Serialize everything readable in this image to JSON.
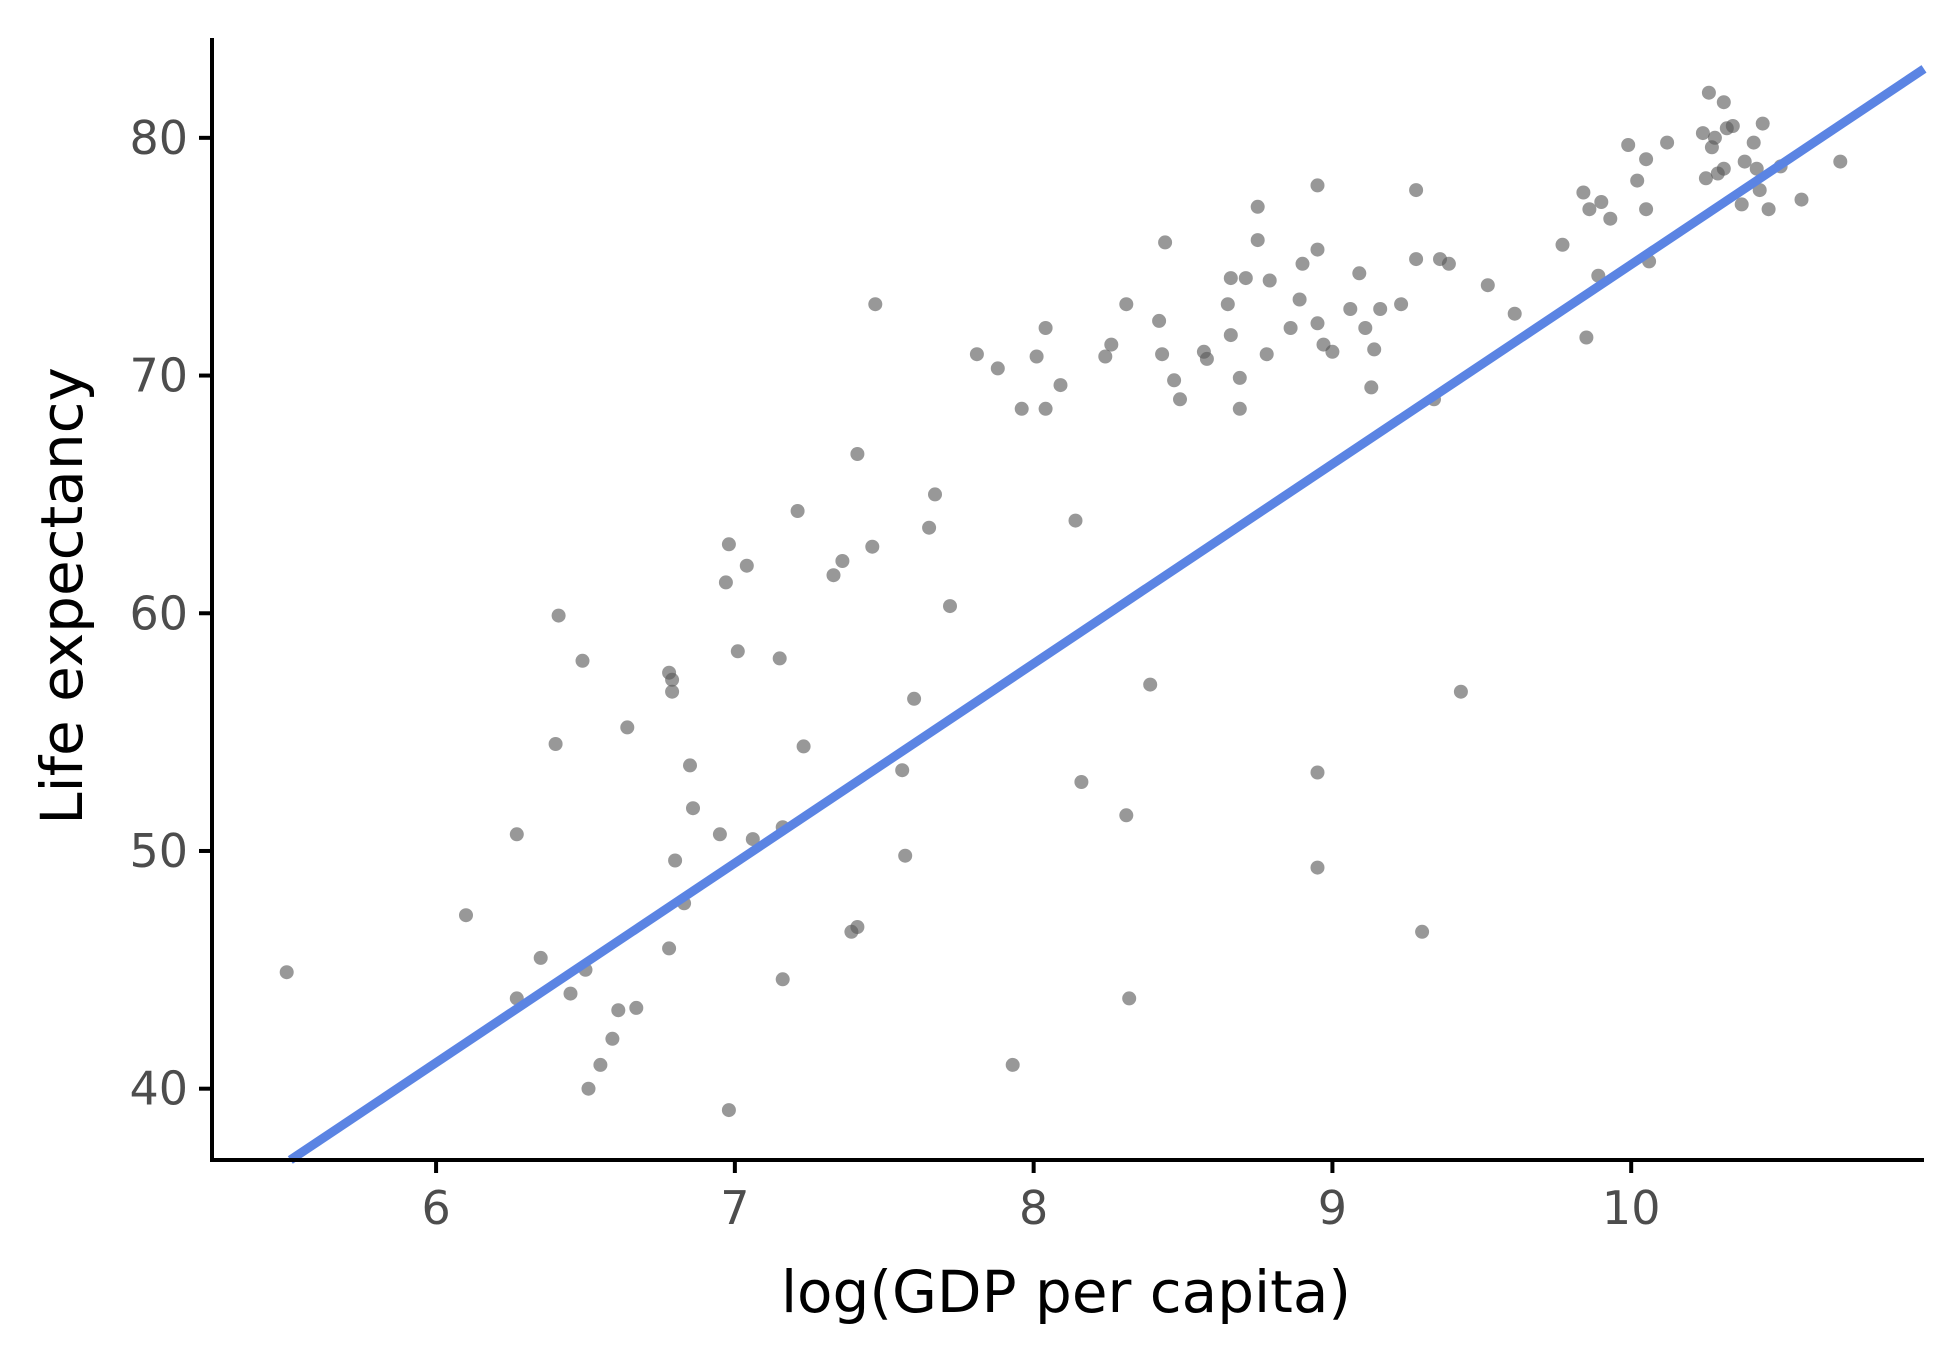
{
  "chart_data": {
    "type": "scatter",
    "xlabel": "log(GDP per capita)",
    "ylabel": "Life expectancy",
    "xlim": [
      5.25,
      10.98
    ],
    "ylim": [
      37.0,
      84.2
    ],
    "xticks": [
      6,
      7,
      8,
      9,
      10
    ],
    "yticks": [
      40,
      50,
      60,
      70,
      80
    ],
    "grid": false,
    "legend": "none",
    "colors": {
      "points": "#595959",
      "trendline": "#5b84e3",
      "axis": "#000000",
      "tick_label": "#4d4d4d"
    },
    "trendline": {
      "x": [
        5.5,
        10.98
      ],
      "y": [
        36.9,
        82.9
      ]
    },
    "points": [
      [
        5.5,
        44.9
      ],
      [
        6.1,
        47.3
      ],
      [
        6.27,
        43.8
      ],
      [
        6.27,
        50.7
      ],
      [
        6.35,
        45.5
      ],
      [
        6.41,
        59.9
      ],
      [
        6.4,
        54.5
      ],
      [
        6.45,
        44.0
      ],
      [
        6.49,
        58.0
      ],
      [
        6.5,
        45.0
      ],
      [
        6.51,
        40.0
      ],
      [
        6.55,
        41.0
      ],
      [
        6.59,
        42.1
      ],
      [
        6.61,
        43.3
      ],
      [
        6.64,
        55.2
      ],
      [
        6.67,
        43.4
      ],
      [
        6.78,
        45.9
      ],
      [
        6.78,
        57.5
      ],
      [
        6.79,
        57.2
      ],
      [
        6.79,
        56.7
      ],
      [
        6.8,
        49.6
      ],
      [
        6.83,
        47.8
      ],
      [
        6.85,
        53.6
      ],
      [
        6.86,
        51.8
      ],
      [
        6.95,
        50.7
      ],
      [
        6.97,
        61.3
      ],
      [
        6.98,
        62.9
      ],
      [
        6.98,
        39.1
      ],
      [
        7.01,
        58.4
      ],
      [
        7.04,
        62.0
      ],
      [
        7.06,
        50.5
      ],
      [
        7.15,
        58.1
      ],
      [
        7.16,
        51.0
      ],
      [
        7.16,
        44.6
      ],
      [
        7.21,
        64.3
      ],
      [
        7.23,
        54.4
      ],
      [
        7.33,
        61.6
      ],
      [
        7.36,
        62.2
      ],
      [
        7.39,
        46.6
      ],
      [
        7.41,
        46.8
      ],
      [
        7.41,
        66.7
      ],
      [
        7.46,
        62.8
      ],
      [
        7.47,
        73.0
      ],
      [
        7.56,
        53.4
      ],
      [
        7.57,
        49.8
      ],
      [
        7.6,
        56.4
      ],
      [
        7.65,
        63.6
      ],
      [
        7.67,
        65.0
      ],
      [
        7.72,
        60.3
      ],
      [
        7.81,
        70.9
      ],
      [
        7.88,
        70.3
      ],
      [
        7.93,
        41.0
      ],
      [
        7.96,
        68.6
      ],
      [
        8.01,
        70.8
      ],
      [
        8.04,
        68.6
      ],
      [
        8.04,
        72.0
      ],
      [
        8.09,
        69.6
      ],
      [
        8.14,
        63.9
      ],
      [
        8.16,
        52.9
      ],
      [
        8.24,
        70.8
      ],
      [
        8.26,
        71.3
      ],
      [
        8.31,
        73.0
      ],
      [
        8.31,
        51.5
      ],
      [
        8.32,
        43.8
      ],
      [
        8.39,
        57.0
      ],
      [
        8.42,
        72.3
      ],
      [
        8.43,
        70.9
      ],
      [
        8.44,
        75.6
      ],
      [
        8.47,
        69.8
      ],
      [
        8.49,
        69.0
      ],
      [
        8.57,
        71.0
      ],
      [
        8.58,
        70.7
      ],
      [
        8.65,
        73.0
      ],
      [
        8.66,
        71.7
      ],
      [
        8.66,
        74.1
      ],
      [
        8.69,
        68.6
      ],
      [
        8.69,
        69.9
      ],
      [
        8.71,
        74.1
      ],
      [
        8.75,
        75.7
      ],
      [
        8.75,
        77.1
      ],
      [
        8.78,
        70.9
      ],
      [
        8.79,
        74.0
      ],
      [
        8.86,
        72.0
      ],
      [
        8.89,
        73.2
      ],
      [
        8.9,
        74.7
      ],
      [
        8.95,
        78.0
      ],
      [
        8.95,
        75.3
      ],
      [
        8.95,
        72.2
      ],
      [
        8.95,
        53.3
      ],
      [
        8.95,
        49.3
      ],
      [
        8.97,
        71.3
      ],
      [
        9.0,
        71.0
      ],
      [
        9.06,
        72.8
      ],
      [
        9.09,
        74.3
      ],
      [
        9.11,
        72.0
      ],
      [
        9.13,
        69.5
      ],
      [
        9.14,
        71.1
      ],
      [
        9.16,
        72.8
      ],
      [
        9.23,
        73.0
      ],
      [
        9.28,
        74.9
      ],
      [
        9.28,
        77.8
      ],
      [
        9.3,
        46.6
      ],
      [
        9.34,
        69.0
      ],
      [
        9.36,
        74.9
      ],
      [
        9.39,
        74.7
      ],
      [
        9.43,
        56.7
      ],
      [
        9.52,
        73.8
      ],
      [
        9.61,
        72.6
      ],
      [
        9.77,
        75.5
      ],
      [
        9.84,
        77.7
      ],
      [
        9.85,
        71.6
      ],
      [
        9.86,
        77.0
      ],
      [
        9.89,
        74.2
      ],
      [
        9.9,
        77.3
      ],
      [
        9.93,
        76.6
      ],
      [
        9.99,
        79.7
      ],
      [
        10.02,
        78.2
      ],
      [
        10.05,
        79.1
      ],
      [
        10.05,
        77.0
      ],
      [
        10.06,
        74.8
      ],
      [
        10.12,
        79.8
      ],
      [
        10.24,
        80.2
      ],
      [
        10.25,
        78.3
      ],
      [
        10.26,
        81.9
      ],
      [
        10.27,
        79.6
      ],
      [
        10.28,
        80.0
      ],
      [
        10.29,
        78.5
      ],
      [
        10.31,
        81.5
      ],
      [
        10.31,
        78.7
      ],
      [
        10.32,
        80.4
      ],
      [
        10.34,
        80.5
      ],
      [
        10.37,
        77.2
      ],
      [
        10.38,
        79.0
      ],
      [
        10.41,
        79.8
      ],
      [
        10.42,
        78.7
      ],
      [
        10.43,
        77.8
      ],
      [
        10.44,
        80.6
      ],
      [
        10.46,
        77.0
      ],
      [
        10.5,
        78.8
      ],
      [
        10.57,
        77.4
      ],
      [
        10.7,
        79.0
      ]
    ]
  }
}
